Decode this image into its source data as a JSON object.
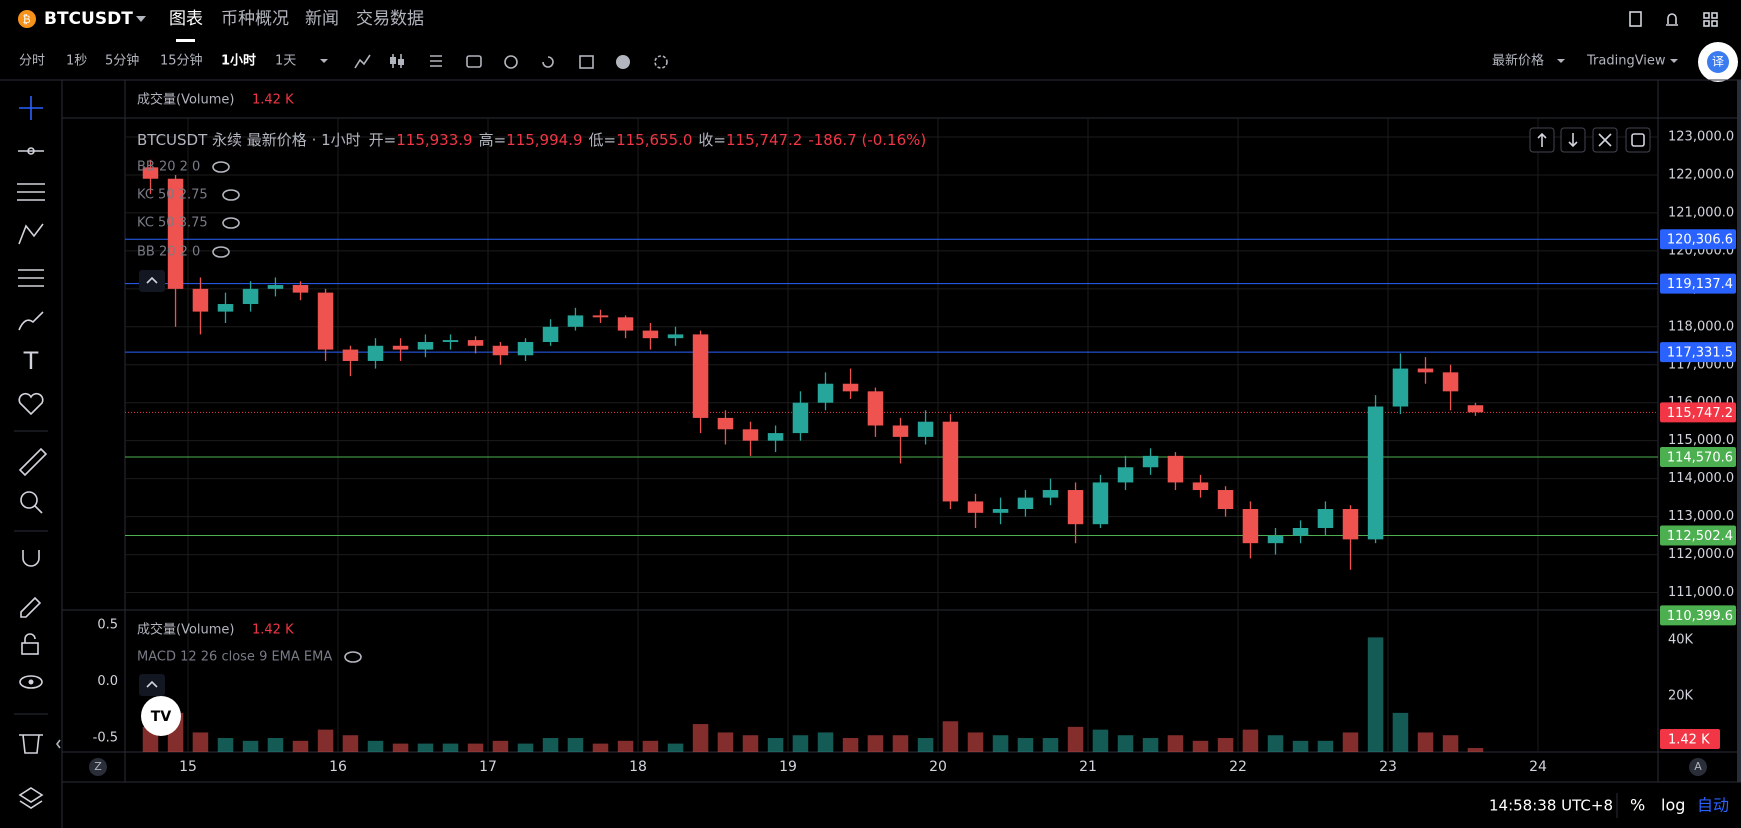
{
  "header": {
    "symbol": "BTCUSDT",
    "tabs": [
      "图表",
      "币种概况",
      "新闻",
      "交易数据"
    ]
  },
  "toolbar": {
    "intervals": [
      "分时",
      "1秒",
      "5分钟",
      "15分钟",
      "1小时",
      "1天"
    ],
    "price_type": "最新价格",
    "view": "TradingView",
    "translate": "译"
  },
  "legend": {
    "title": "BTCUSDT 永续 最新价格 · 1小时",
    "items": [
      {
        "label": "开=",
        "value": "115,933.9"
      },
      {
        "label": "高=",
        "value": "115,994.9"
      },
      {
        "label": "低=",
        "value": "115,655.0"
      },
      {
        "label": "收=",
        "value": "115,747.2"
      }
    ],
    "change": "-186.7 (-0.16%)"
  },
  "indicators": [
    "BB 20 2 0",
    "KC 50 2.75",
    "KC 50 3.75",
    "BB 20 2 0"
  ],
  "volume_header": {
    "label": "成交量(Volume)",
    "value": "1.42 K"
  },
  "macd_label": "MACD 12 26 close 9 EMA EMA",
  "corner_labels": [
    "Z",
    "A"
  ],
  "footer": {
    "time": "14:58:38 UTC+8",
    "buttons": [
      "%",
      "log",
      "自动"
    ]
  },
  "chart_data": [
    {
      "type": "candlestick",
      "up_color": "#26a69a",
      "down_color": "#ef5350",
      "x": [
        14.75,
        14.917,
        15.083,
        15.25,
        15.417,
        15.583,
        15.75,
        15.917,
        16.083,
        16.25,
        16.417,
        16.583,
        16.75,
        16.917,
        17.083,
        17.25,
        17.417,
        17.583,
        17.75,
        17.917,
        18.083,
        18.25,
        18.417,
        18.583,
        18.75,
        18.917,
        19.083,
        19.25,
        19.417,
        19.583,
        19.75,
        19.917,
        20.083,
        20.25,
        20.417,
        20.583,
        20.75,
        20.917,
        21.083,
        21.25,
        21.417,
        21.583,
        21.75,
        21.917,
        22.083,
        22.25,
        22.417,
        22.583,
        22.75,
        22.917,
        23.083,
        23.25,
        23.417,
        23.583
      ],
      "open": [
        122200,
        121900,
        119000,
        118400,
        118600,
        119000,
        119100,
        118900,
        117400,
        117100,
        117500,
        117400,
        117600,
        117650,
        117500,
        117250,
        117600,
        118000,
        118300,
        118250,
        117900,
        117700,
        117800,
        115600,
        115300,
        115000,
        115200,
        116000,
        116500,
        116300,
        115400,
        115100,
        115500,
        113400,
        113100,
        113200,
        113500,
        113700,
        112800,
        113900,
        114300,
        114600,
        113900,
        113700,
        113200,
        112300,
        112500,
        112700,
        113200,
        112400,
        115900,
        116900,
        116800,
        115933.9
      ],
      "high": [
        122400,
        122000,
        119300,
        118900,
        119200,
        119300,
        119200,
        119000,
        117500,
        117700,
        117700,
        117800,
        117800,
        117750,
        117600,
        117700,
        118200,
        118500,
        118450,
        118300,
        118100,
        118000,
        117900,
        115800,
        115500,
        115400,
        116300,
        116800,
        116900,
        116400,
        115600,
        115800,
        115700,
        113600,
        113500,
        113700,
        114000,
        113900,
        114100,
        114600,
        114800,
        114700,
        114100,
        113800,
        113400,
        112700,
        112900,
        113400,
        113300,
        116200,
        117300,
        117200,
        117000,
        115994.9
      ],
      "low": [
        121500,
        118000,
        117800,
        118100,
        118400,
        118800,
        118700,
        117100,
        116700,
        116900,
        117100,
        117200,
        117400,
        117300,
        117000,
        117100,
        117500,
        117900,
        118100,
        117700,
        117400,
        117500,
        115200,
        114900,
        114600,
        114700,
        115000,
        115800,
        116100,
        115100,
        114400,
        114900,
        113200,
        112700,
        112800,
        113000,
        113300,
        112300,
        112700,
        113700,
        114100,
        113700,
        113500,
        113000,
        111900,
        112000,
        112300,
        112500,
        111600,
        112300,
        115700,
        116500,
        115800,
        115655
      ],
      "close": [
        121900,
        119000,
        118400,
        118600,
        119000,
        119100,
        118900,
        117400,
        117100,
        117500,
        117400,
        117600,
        117650,
        117500,
        117250,
        117600,
        118000,
        118300,
        118250,
        117900,
        117700,
        117800,
        115600,
        115300,
        115000,
        115200,
        116000,
        116500,
        116300,
        115400,
        115100,
        115500,
        113400,
        113100,
        113200,
        113500,
        113700,
        112800,
        113900,
        114300,
        114600,
        113900,
        113700,
        113200,
        112300,
        112500,
        112700,
        113200,
        112400,
        115900,
        116900,
        116800,
        116300,
        115747.2
      ],
      "xlim": [
        14.58,
        24.8
      ],
      "xticks": [
        15,
        16,
        17,
        18,
        19,
        20,
        21,
        22,
        23,
        24
      ],
      "ylim": [
        110540,
        123500
      ],
      "yticks": [
        {
          "value": 111000,
          "label": "111,000.0"
        },
        {
          "value": 112000,
          "label": "112,000.0"
        },
        {
          "value": 113000,
          "label": "113,000.0"
        },
        {
          "value": 114000,
          "label": "114,000.0"
        },
        {
          "value": 115000,
          "label": "115,000.0"
        },
        {
          "value": 116000,
          "label": "116,000.0"
        },
        {
          "value": 117000,
          "label": "117,000.0"
        },
        {
          "value": 118000,
          "label": "118,000.0"
        },
        {
          "value": 119000,
          "label": "119,000.0"
        },
        {
          "value": 120000,
          "label": "120,000.0"
        },
        {
          "value": 121000,
          "label": "121,000.0"
        },
        {
          "value": 122000,
          "label": "122,000.0"
        },
        {
          "value": 123000,
          "label": "123,000.0"
        }
      ],
      "grid": true,
      "hlines": [
        {
          "value": 120306.6,
          "label": "120,306.6",
          "color": "#2962ff"
        },
        {
          "value": 119137.4,
          "label": "119,137.4",
          "color": "#2962ff"
        },
        {
          "value": 117331.5,
          "label": "117,331.5",
          "color": "#2962ff"
        },
        {
          "value": 114570.6,
          "label": "114,570.6",
          "color": "#4caf50"
        },
        {
          "value": 112502.4,
          "label": "112,502.4",
          "color": "#4caf50"
        },
        {
          "value": 110399.6,
          "label": "110,399.6",
          "color": "#4caf50"
        }
      ],
      "last_price": {
        "value": 115747.2,
        "label": "115,747.2",
        "color": "#f23645"
      }
    },
    {
      "type": "bar",
      "name": "volume",
      "x": [
        14.75,
        14.917,
        15.083,
        15.25,
        15.417,
        15.583,
        15.75,
        15.917,
        16.083,
        16.25,
        16.417,
        16.583,
        16.75,
        16.917,
        17.083,
        17.25,
        17.417,
        17.583,
        17.75,
        17.917,
        18.083,
        18.25,
        18.417,
        18.583,
        18.75,
        18.917,
        19.083,
        19.25,
        19.417,
        19.583,
        19.75,
        19.917,
        20.083,
        20.25,
        20.417,
        20.583,
        20.75,
        20.917,
        21.083,
        21.25,
        21.417,
        21.583,
        21.75,
        21.917,
        22.083,
        22.25,
        22.417,
        22.583,
        22.75,
        22.917,
        23.083,
        23.25,
        23.417,
        23.583
      ],
      "values": [
        9,
        14,
        7,
        5,
        4,
        5,
        4,
        8,
        6,
        4,
        3,
        3,
        3,
        3,
        4,
        3,
        5,
        5,
        3,
        4,
        4,
        3,
        10,
        7,
        6,
        5,
        6,
        7,
        5,
        6,
        6,
        5,
        11,
        7,
        6,
        5,
        5,
        9,
        8,
        6,
        5,
        6,
        4,
        5,
        8,
        6,
        4,
        4,
        7,
        41,
        14,
        7,
        6,
        1.42
      ],
      "last_label": "1.42 K",
      "xlim": [
        14.58,
        24.8
      ],
      "ylim": [
        0,
        50.8
      ],
      "yticks": [
        {
          "value": 20,
          "label": "20K"
        },
        {
          "value": 40,
          "label": "40K"
        }
      ]
    },
    {
      "type": "line",
      "name": "macd",
      "series": [],
      "ylim": [
        -0.624,
        0.633
      ],
      "yticks": [
        0.5,
        {
          "value": 0,
          "label": "0.0"
        },
        -0.5
      ]
    }
  ]
}
